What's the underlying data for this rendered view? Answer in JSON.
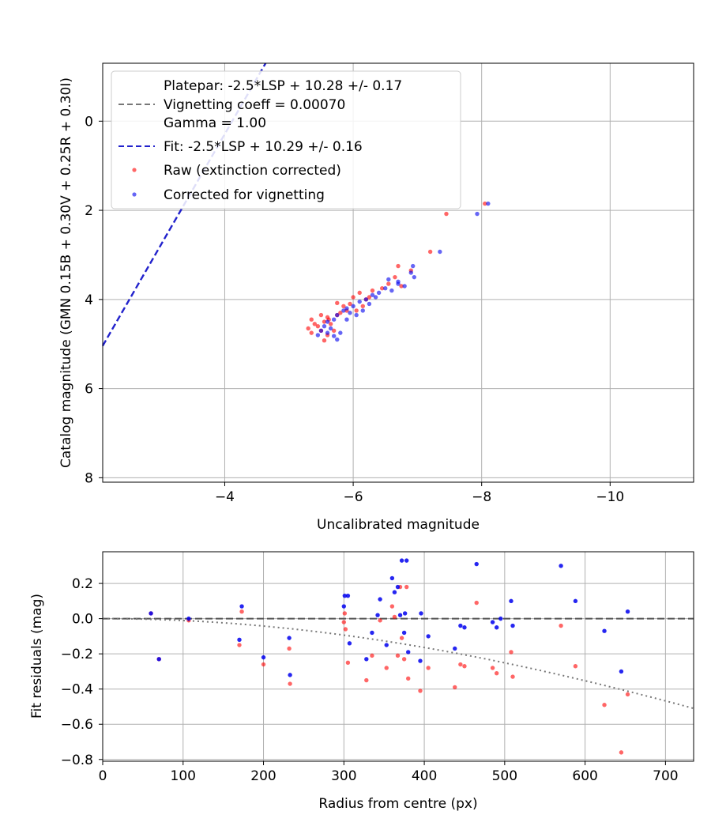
{
  "chart_data": [
    {
      "type": "scatter",
      "xlabel": "Uncalibrated magnitude",
      "ylabel": "Catalog magnitude (GMN 0.15B + 0.30V + 0.25R + 0.30I)",
      "xlim": [
        -2.1,
        -11.3
      ],
      "ylim": [
        8.1,
        -1.3
      ],
      "x_ticks": [
        -4,
        -6,
        -8,
        -10
      ],
      "x_tick_labels": [
        "−4",
        "−6",
        "−8",
        "−10"
      ],
      "y_ticks": [
        0,
        2,
        4,
        6,
        8
      ],
      "y_tick_labels": [
        "0",
        "2",
        "4",
        "6",
        "8"
      ],
      "grid": true,
      "legend_position": "top-left",
      "legend": [
        {
          "kind": "blank",
          "label": "Platepar: -2.5*LSP + 10.28 +/- 0.17"
        },
        {
          "kind": "gray-dash",
          "label": "Vignetting coeff = 0.00070"
        },
        {
          "kind": "blank",
          "label": "Gamma = 1.00"
        },
        {
          "kind": "blue-dash",
          "label": "Fit: -2.5*LSP + 10.29 +/- 0.16"
        },
        {
          "kind": "red-dot",
          "label": "Raw (extinction corrected)"
        },
        {
          "kind": "blue-dot",
          "label": "Corrected for vignetting"
        }
      ],
      "fit_line": {
        "slope": 2.5,
        "intercept": 10.29,
        "color": "#2222cc"
      },
      "series": [
        {
          "name": "Raw (extinction corrected)",
          "color": "#ff0000",
          "points": [
            [
              -7.45,
              2.08
            ],
            [
              -8.05,
              1.85
            ],
            [
              -7.2,
              2.93
            ],
            [
              -6.7,
              3.25
            ],
            [
              -6.9,
              3.35
            ],
            [
              -6.65,
              3.5
            ],
            [
              -6.55,
              3.65
            ],
            [
              -6.75,
              3.7
            ],
            [
              -6.45,
              3.75
            ],
            [
              -6.3,
              3.8
            ],
            [
              -6.1,
              3.85
            ],
            [
              -6.0,
              3.95
            ],
            [
              -6.2,
              4.0
            ],
            [
              -5.95,
              4.1
            ],
            [
              -5.85,
              4.15
            ],
            [
              -5.75,
              4.08
            ],
            [
              -5.9,
              4.25
            ],
            [
              -5.6,
              4.4
            ],
            [
              -5.5,
              4.35
            ],
            [
              -5.55,
              4.5
            ],
            [
              -5.45,
              4.6
            ],
            [
              -5.65,
              4.55
            ],
            [
              -5.35,
              4.45
            ],
            [
              -5.4,
              4.55
            ],
            [
              -5.3,
              4.65
            ],
            [
              -5.35,
              4.75
            ],
            [
              -5.5,
              4.7
            ],
            [
              -5.6,
              4.8
            ],
            [
              -5.55,
              4.92
            ],
            [
              -5.7,
              4.7
            ],
            [
              -5.75,
              4.35
            ],
            [
              -5.8,
              4.3
            ],
            [
              -5.62,
              4.45
            ],
            [
              -6.05,
              4.25
            ],
            [
              -6.15,
              4.15
            ],
            [
              -6.25,
              3.95
            ]
          ]
        },
        {
          "name": "Corrected for vignetting",
          "color": "#0000ee",
          "points": [
            [
              -8.1,
              1.85
            ],
            [
              -7.93,
              2.08
            ],
            [
              -7.35,
              2.93
            ],
            [
              -6.93,
              3.25
            ],
            [
              -6.9,
              3.4
            ],
            [
              -6.95,
              3.5
            ],
            [
              -6.7,
              3.6
            ],
            [
              -6.8,
              3.7
            ],
            [
              -6.5,
              3.75
            ],
            [
              -6.6,
              3.8
            ],
            [
              -6.4,
              3.85
            ],
            [
              -6.3,
              3.9
            ],
            [
              -6.2,
              4.0
            ],
            [
              -6.1,
              4.05
            ],
            [
              -6.0,
              4.15
            ],
            [
              -5.9,
              4.2
            ],
            [
              -5.95,
              4.3
            ],
            [
              -5.85,
              4.25
            ],
            [
              -5.75,
              4.35
            ],
            [
              -5.7,
              4.45
            ],
            [
              -5.6,
              4.5
            ],
            [
              -5.55,
              4.6
            ],
            [
              -5.65,
              4.65
            ],
            [
              -5.5,
              4.7
            ],
            [
              -5.6,
              4.75
            ],
            [
              -5.7,
              4.82
            ],
            [
              -5.8,
              4.75
            ],
            [
              -5.75,
              4.9
            ],
            [
              -5.45,
              4.8
            ],
            [
              -6.35,
              3.95
            ],
            [
              -6.55,
              3.55
            ],
            [
              -6.7,
              3.65
            ],
            [
              -6.25,
              4.1
            ],
            [
              -6.05,
              4.35
            ],
            [
              -5.9,
              4.45
            ],
            [
              -6.15,
              4.25
            ]
          ]
        }
      ]
    },
    {
      "type": "scatter",
      "xlabel": "Radius from centre (px)",
      "ylabel": "Fit residuals (mag)",
      "xlim": [
        0,
        735
      ],
      "ylim": [
        -0.81,
        0.38
      ],
      "x_ticks": [
        0,
        100,
        200,
        300,
        400,
        500,
        600,
        700
      ],
      "x_tick_labels": [
        "0",
        "100",
        "200",
        "300",
        "400",
        "500",
        "600",
        "700"
      ],
      "y_ticks": [
        0.2,
        0.0,
        -0.2,
        -0.4,
        -0.6,
        -0.8
      ],
      "y_tick_labels": [
        "0.2",
        "0.0",
        "−0.2",
        "−0.4",
        "−0.6",
        "−0.8"
      ],
      "grid": true,
      "zero_line": {
        "y": 0,
        "color": "#555555"
      },
      "vignetting_curve": {
        "coeff": 0.0007,
        "color": "#777777"
      },
      "series": [
        {
          "name": "Raw",
          "color": "#ff0000",
          "points": [
            [
              60,
              0.03
            ],
            [
              70,
              -0.23
            ],
            [
              107,
              -0.01
            ],
            [
              170,
              -0.15
            ],
            [
              173,
              0.04
            ],
            [
              200,
              -0.26
            ],
            [
              232,
              -0.17
            ],
            [
              233,
              -0.37
            ],
            [
              300,
              -0.02
            ],
            [
              301,
              0.03
            ],
            [
              302,
              -0.06
            ],
            [
              305,
              -0.25
            ],
            [
              328,
              -0.35
            ],
            [
              335,
              -0.21
            ],
            [
              345,
              -0.01
            ],
            [
              353,
              -0.28
            ],
            [
              360,
              0.07
            ],
            [
              363,
              0.01
            ],
            [
              367,
              -0.21
            ],
            [
              370,
              0.18
            ],
            [
              372,
              -0.11
            ],
            [
              375,
              -0.23
            ],
            [
              378,
              0.18
            ],
            [
              380,
              -0.34
            ],
            [
              395,
              -0.41
            ],
            [
              405,
              -0.28
            ],
            [
              438,
              -0.39
            ],
            [
              445,
              -0.26
            ],
            [
              450,
              -0.27
            ],
            [
              485,
              -0.28
            ],
            [
              490,
              -0.31
            ],
            [
              508,
              -0.19
            ],
            [
              510,
              -0.33
            ],
            [
              465,
              0.09
            ],
            [
              570,
              -0.04
            ],
            [
              588,
              -0.27
            ],
            [
              624,
              -0.49
            ],
            [
              645,
              -0.76
            ],
            [
              653,
              -0.43
            ]
          ]
        },
        {
          "name": "Corrected",
          "color": "#0000ee",
          "points": [
            [
              60,
              0.03
            ],
            [
              70,
              -0.23
            ],
            [
              107,
              0.0
            ],
            [
              170,
              -0.12
            ],
            [
              173,
              0.07
            ],
            [
              200,
              -0.22
            ],
            [
              232,
              -0.11
            ],
            [
              233,
              -0.32
            ],
            [
              300,
              0.07
            ],
            [
              301,
              0.13
            ],
            [
              305,
              0.13
            ],
            [
              307,
              -0.14
            ],
            [
              328,
              -0.23
            ],
            [
              335,
              -0.08
            ],
            [
              342,
              0.02
            ],
            [
              345,
              0.11
            ],
            [
              353,
              -0.15
            ],
            [
              360,
              0.23
            ],
            [
              363,
              0.15
            ],
            [
              367,
              0.18
            ],
            [
              370,
              0.02
            ],
            [
              372,
              0.33
            ],
            [
              375,
              -0.08
            ],
            [
              376,
              0.03
            ],
            [
              378,
              0.33
            ],
            [
              380,
              -0.19
            ],
            [
              395,
              -0.24
            ],
            [
              396,
              0.03
            ],
            [
              405,
              -0.1
            ],
            [
              438,
              -0.17
            ],
            [
              445,
              -0.04
            ],
            [
              450,
              -0.05
            ],
            [
              485,
              -0.02
            ],
            [
              490,
              -0.05
            ],
            [
              495,
              0.0
            ],
            [
              508,
              0.1
            ],
            [
              510,
              -0.04
            ],
            [
              465,
              0.31
            ],
            [
              570,
              0.3
            ],
            [
              588,
              0.1
            ],
            [
              624,
              -0.07
            ],
            [
              645,
              -0.3
            ],
            [
              653,
              0.04
            ]
          ]
        }
      ]
    }
  ]
}
